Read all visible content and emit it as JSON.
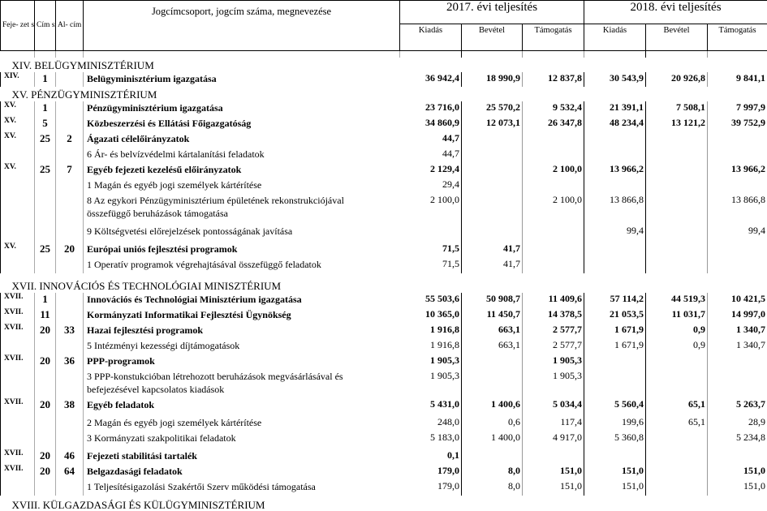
{
  "header": {
    "fejezet": "Feje- zet szám",
    "cim": "Cím szám",
    "alcim": "Al- cím szám",
    "name": "Jogcímcsoport, jogcím száma, megnevezése",
    "year1": "2017. évi teljesítés",
    "year2": "2018. évi teljesítés",
    "cols": [
      "Kiadás",
      "Bevétel",
      "Támogatás",
      "Kiadás",
      "Bevétel",
      "Támogatás"
    ]
  },
  "rows": [
    {
      "type": "sec",
      "name": "XIV. BELÜGYMINISZTÉRIUM"
    },
    {
      "type": "bold",
      "fej": "XIV.",
      "cim": "1",
      "alcim": "",
      "name": "Belügyminisztérium igazgatása",
      "vals": [
        "36 942,4",
        "18 990,9",
        "12 837,8",
        "30 543,9",
        "20 926,8",
        "9 841,1"
      ]
    },
    {
      "type": "sec",
      "name": "XV. PÉNZÜGYMINISZTÉRIUM"
    },
    {
      "type": "bold",
      "fej": "XV.",
      "cim": "1",
      "alcim": "",
      "name": "Pénzügyminisztérium igazgatása",
      "vals": [
        "23 716,0",
        "25 570,2",
        "9 532,4",
        "21 391,1",
        "7 508,1",
        "7 997,9"
      ]
    },
    {
      "type": "bold",
      "fej": "XV.",
      "cim": "5",
      "alcim": "",
      "name": "Közbeszerzési és Ellátási Főigazgatóság",
      "vals": [
        "34 860,9",
        "12 073,1",
        "26 347,8",
        "48 234,4",
        "13 121,2",
        "39 752,9"
      ]
    },
    {
      "type": "bold",
      "fej": "XV.",
      "cim": "25",
      "alcim": "2",
      "name": "Ágazati célelőirányzatok",
      "vals": [
        "44,7",
        "",
        "",
        "",
        "",
        ""
      ]
    },
    {
      "type": "norm",
      "fej": "",
      "cim": "",
      "alcim": "",
      "name": "6 Ár- és belvízvédelmi kártalanítási feladatok",
      "vals": [
        "44,7",
        "",
        "",
        "",
        "",
        ""
      ]
    },
    {
      "type": "bold",
      "fej": "XV.",
      "cim": "25",
      "alcim": "7",
      "name": "Egyéb fejezeti kezelésű előirányzatok",
      "vals": [
        "2 129,4",
        "",
        "2 100,0",
        "13 966,2",
        "",
        "13 966,2"
      ]
    },
    {
      "type": "norm",
      "fej": "",
      "cim": "",
      "alcim": "",
      "name": "1 Magán és egyéb jogi személyek kártérítése",
      "vals": [
        "29,4",
        "",
        "",
        "",
        "",
        ""
      ]
    },
    {
      "type": "norm",
      "fej": "",
      "cim": "",
      "alcim": "",
      "name": "8 Az egykori Pénzügyminisztérium épületének rekonstrukciójával összefüggő beruházások támogatása",
      "vals": [
        "2 100,0",
        "",
        "2 100,0",
        "13 866,8",
        "",
        "13 866,8"
      ]
    },
    {
      "type": "norm",
      "fej": "",
      "cim": "",
      "alcim": "",
      "name": "9 Költségvetési előrejelzések pontosságának javítása",
      "vals": [
        "",
        "",
        "",
        "99,4",
        "",
        "99,4"
      ]
    },
    {
      "type": "bold",
      "fej": "XV.",
      "cim": "25",
      "alcim": "20",
      "name": "Európai uniós fejlesztési programok",
      "vals": [
        "71,5",
        "41,7",
        "",
        "",
        "",
        ""
      ]
    },
    {
      "type": "norm",
      "fej": "",
      "cim": "",
      "alcim": "",
      "name": "1 Operatív programok végrehajtásával összefüggő feladatok",
      "vals": [
        "71,5",
        "41,7",
        "",
        "",
        "",
        ""
      ]
    },
    {
      "type": "sec",
      "name": "XVII. INNOVÁCIÓS ÉS TECHNOLÓGIAI MINISZTÉRIUM"
    },
    {
      "type": "bold",
      "fej": "XVII.",
      "cim": "1",
      "alcim": "",
      "name": "Innovációs és Technológiai Minisztérium igazgatása",
      "vals": [
        "55 503,6",
        "50 908,7",
        "11 409,6",
        "57 114,2",
        "44 519,3",
        "10 421,5"
      ]
    },
    {
      "type": "bold",
      "fej": "XVII.",
      "cim": "11",
      "alcim": "",
      "name": "Kormányzati Informatikai Fejlesztési Ügynökség",
      "vals": [
        "10 365,0",
        "11 450,7",
        "14 378,5",
        "21 053,5",
        "11 031,7",
        "14 997,0"
      ]
    },
    {
      "type": "bold",
      "fej": "XVII.",
      "cim": "20",
      "alcim": "33",
      "name": "Hazai fejlesztési programok",
      "vals": [
        "1 916,8",
        "663,1",
        "2 577,7",
        "1 671,9",
        "0,9",
        "1 340,7"
      ]
    },
    {
      "type": "norm",
      "fej": "",
      "cim": "",
      "alcim": "",
      "name": "5 Intézményi kezességi díjtámogatások",
      "vals": [
        "1 916,8",
        "663,1",
        "2 577,7",
        "1 671,9",
        "0,9",
        "1 340,7"
      ]
    },
    {
      "type": "bold",
      "fej": "XVII.",
      "cim": "20",
      "alcim": "36",
      "name": "PPP-programok",
      "vals": [
        "1 905,3",
        "",
        "1 905,3",
        "",
        "",
        ""
      ]
    },
    {
      "type": "norm",
      "fej": "",
      "cim": "",
      "alcim": "",
      "name": "3 PPP-konstukcióban létrehozott beruházások megvásárlásával és befejezésével kapcsolatos kiadások",
      "vals": [
        "1 905,3",
        "",
        "1 905,3",
        "",
        "",
        ""
      ]
    },
    {
      "type": "bold",
      "fej": "XVII.",
      "cim": "20",
      "alcim": "38",
      "name": "Egyéb feladatok",
      "vals": [
        "5 431,0",
        "1 400,6",
        "5 034,4",
        "5 560,4",
        "65,1",
        "5 263,7"
      ]
    },
    {
      "type": "norm",
      "fej": "",
      "cim": "",
      "alcim": "",
      "name": "2 Magán és egyéb jogi személyek kártérítése",
      "vals": [
        "248,0",
        "0,6",
        "117,4",
        "199,6",
        "65,1",
        "28,9"
      ]
    },
    {
      "type": "norm",
      "fej": "",
      "cim": "",
      "alcim": "",
      "name": "3 Kormányzati szakpolitikai feladatok",
      "vals": [
        "5 183,0",
        "1 400,0",
        "4 917,0",
        "5 360,8",
        "",
        "5 234,8"
      ]
    },
    {
      "type": "bold",
      "fej": "XVII.",
      "cim": "20",
      "alcim": "46",
      "name": "Fejezeti stabilitási tartalék",
      "vals": [
        "0,1",
        "",
        "",
        "",
        "",
        ""
      ]
    },
    {
      "type": "bold",
      "fej": "XVII.",
      "cim": "20",
      "alcim": "64",
      "name": "Belgazdasági feladatok",
      "vals": [
        "179,0",
        "8,0",
        "151,0",
        "151,0",
        "",
        "151,0"
      ]
    },
    {
      "type": "norm",
      "fej": "",
      "cim": "",
      "alcim": "",
      "name": "1 Teljesítésigazolási Szakértői Szerv működési támogatása",
      "vals": [
        "179,0",
        "8,0",
        "151,0",
        "151,0",
        "",
        "151,0"
      ]
    },
    {
      "type": "sec",
      "name": "XVIII. KÜLGAZDASÁGI ÉS KÜLÜGYMINISZTÉRIUM"
    }
  ]
}
